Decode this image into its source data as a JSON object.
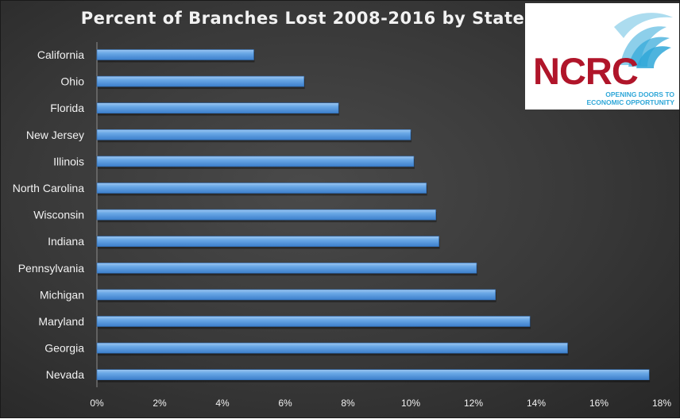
{
  "chart_data": {
    "type": "bar",
    "orientation": "horizontal",
    "title": "Percent of Branches Lost 2008-2016 by State",
    "xlabel": "",
    "ylabel": "",
    "xlim": [
      0,
      18
    ],
    "x_ticks": [
      "0%",
      "2%",
      "4%",
      "6%",
      "8%",
      "10%",
      "12%",
      "14%",
      "16%",
      "18%"
    ],
    "categories": [
      "California",
      "Ohio",
      "Florida",
      "New Jersey",
      "Illinois",
      "North Carolina",
      "Wisconsin",
      "Indiana",
      "Pennsylvania",
      "Michigan",
      "Maryland",
      "Georgia",
      "Nevada"
    ],
    "values": [
      5.0,
      6.6,
      7.7,
      10.0,
      10.1,
      10.5,
      10.8,
      10.9,
      12.1,
      12.7,
      13.8,
      15.0,
      17.6
    ],
    "bar_color": "#5b9bd5",
    "grid": false,
    "legend": "none"
  },
  "logo": {
    "text": "NCRC",
    "tagline": [
      "OPENING DOORS TO",
      "ECONOMIC OPPORTUNITY"
    ],
    "text_color": "#b0152a",
    "wave_color": "#2fa7d8"
  },
  "colors": {
    "background": "#383838",
    "text": "#f2f2f2",
    "axis": "#8c8c8c"
  }
}
